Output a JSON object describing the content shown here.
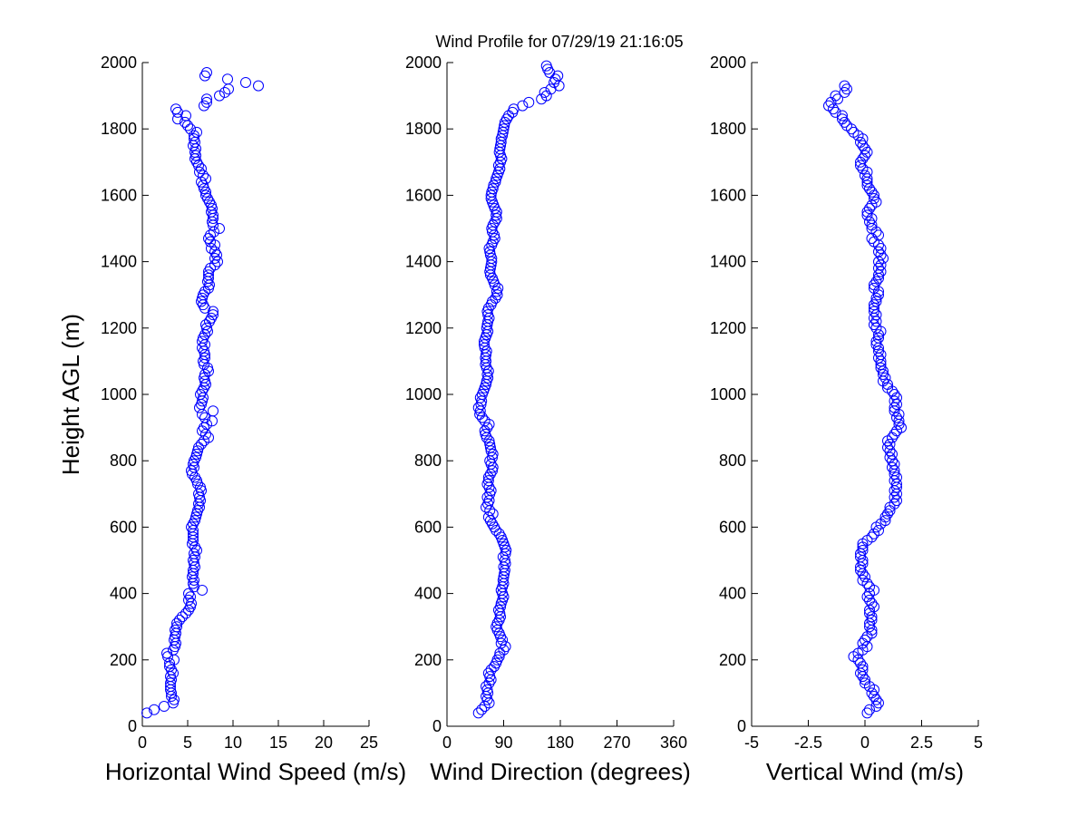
{
  "chart_data": {
    "title": "Wind Profile for  07/29/19 21:16:05",
    "ylabel": "Height AGL (m)",
    "ylim": [
      0,
      2000
    ],
    "yticks": [
      0,
      200,
      400,
      600,
      800,
      1000,
      1200,
      1400,
      1600,
      1800,
      2000
    ],
    "colors": {
      "marker": "#0000ff",
      "axes": "#000000",
      "background": "#ffffff"
    },
    "height": [
      40,
      50,
      60,
      70,
      80,
      90,
      100,
      110,
      120,
      130,
      140,
      150,
      160,
      170,
      180,
      190,
      200,
      210,
      220,
      230,
      240,
      250,
      260,
      270,
      280,
      290,
      300,
      310,
      320,
      330,
      340,
      350,
      360,
      370,
      380,
      390,
      400,
      410,
      420,
      430,
      440,
      450,
      460,
      470,
      480,
      490,
      500,
      510,
      520,
      530,
      540,
      550,
      560,
      570,
      580,
      590,
      600,
      610,
      620,
      630,
      640,
      650,
      660,
      670,
      680,
      690,
      700,
      710,
      720,
      730,
      740,
      750,
      760,
      770,
      780,
      790,
      800,
      810,
      820,
      830,
      840,
      850,
      860,
      870,
      880,
      890,
      900,
      910,
      920,
      930,
      940,
      950,
      960,
      970,
      980,
      990,
      1000,
      1010,
      1020,
      1030,
      1040,
      1050,
      1060,
      1070,
      1080,
      1090,
      1100,
      1110,
      1120,
      1130,
      1140,
      1150,
      1160,
      1170,
      1180,
      1190,
      1200,
      1210,
      1220,
      1230,
      1240,
      1250,
      1260,
      1270,
      1280,
      1290,
      1300,
      1310,
      1320,
      1330,
      1340,
      1350,
      1360,
      1370,
      1380,
      1390,
      1400,
      1410,
      1420,
      1430,
      1440,
      1450,
      1460,
      1470,
      1480,
      1490,
      1500,
      1510,
      1520,
      1530,
      1540,
      1550,
      1560,
      1570,
      1580,
      1590,
      1600,
      1610,
      1620,
      1630,
      1640,
      1650,
      1660,
      1670,
      1680,
      1690,
      1700,
      1710,
      1720,
      1730,
      1740,
      1750,
      1760,
      1770,
      1780,
      1790,
      1800,
      1810,
      1820,
      1830,
      1840,
      1850,
      1860,
      1870,
      1880,
      1890,
      1900,
      1910,
      1920,
      1930,
      1940,
      1950,
      1960,
      1970,
      1980,
      1990
    ],
    "panels": [
      {
        "type": "scatter",
        "xlabel": "Horizontal Wind Speed (m/s)",
        "xlim": [
          0,
          25
        ],
        "xticks": [
          0,
          5,
          10,
          15,
          20,
          25
        ],
        "xtick_labels": [
          "0",
          "5",
          "10",
          "15",
          "20",
          "25"
        ],
        "values": [
          0.5,
          1.3,
          2.4,
          3.4,
          3.5,
          3.2,
          3.2,
          3.1,
          3.1,
          3.1,
          3.2,
          3.1,
          3.4,
          3.2,
          3.0,
          3.0,
          3.5,
          2.8,
          2.7,
          3.4,
          3.6,
          3.7,
          3.5,
          3.6,
          3.7,
          3.6,
          3.8,
          3.8,
          4.1,
          4.4,
          4.8,
          5.1,
          5.3,
          5.4,
          5.1,
          5.3,
          5.1,
          6.6,
          5.7,
          5.6,
          5.7,
          5.5,
          5.6,
          5.6,
          5.8,
          5.7,
          5.6,
          5.8,
          5.7,
          6.0,
          5.8,
          5.5,
          5.6,
          5.6,
          5.6,
          5.6,
          5.4,
          5.6,
          5.8,
          5.9,
          6.0,
          6.1,
          6.3,
          6.2,
          6.4,
          6.3,
          6.2,
          6.5,
          6.4,
          6.1,
          6.0,
          5.8,
          5.5,
          5.4,
          5.7,
          5.6,
          5.7,
          5.9,
          6.0,
          6.1,
          6.2,
          6.5,
          6.8,
          7.3,
          7.0,
          6.6,
          6.8,
          7.1,
          7.7,
          6.9,
          6.6,
          7.8,
          6.3,
          6.5,
          6.6,
          6.7,
          6.4,
          6.6,
          6.8,
          7.0,
          6.9,
          6.8,
          6.9,
          7.3,
          7.2,
          6.8,
          6.7,
          6.9,
          6.9,
          6.8,
          6.6,
          6.9,
          6.6,
          6.7,
          6.9,
          7.2,
          7.1,
          7.0,
          7.4,
          7.6,
          7.8,
          7.8,
          6.9,
          6.7,
          6.5,
          6.6,
          6.7,
          6.9,
          7.3,
          7.4,
          7.2,
          7.3,
          7.3,
          7.3,
          7.5,
          8.0,
          8.3,
          8.0,
          8.2,
          8.0,
          7.6,
          8.0,
          7.5,
          7.3,
          7.5,
          7.9,
          8.5,
          7.8,
          7.7,
          7.8,
          7.8,
          7.6,
          7.7,
          7.6,
          7.4,
          7.2,
          7.0,
          7.0,
          6.8,
          6.7,
          6.5,
          7.0,
          6.7,
          6.3,
          6.5,
          6.2,
          6.0,
          5.8,
          5.9,
          5.8,
          5.9,
          5.6,
          5.8,
          5.7,
          5.7,
          6.0,
          5.3,
          5.0,
          4.7,
          3.9,
          4.8,
          3.9,
          3.7,
          6.8,
          7.1,
          7.1,
          8.5,
          9.1,
          9.5,
          12.8,
          11.4,
          9.4,
          6.9,
          7.1
        ]
      },
      {
        "type": "scatter",
        "xlabel": "Wind Direction (degrees)",
        "xlim": [
          0,
          360
        ],
        "xticks": [
          0,
          90,
          180,
          270,
          360
        ],
        "xtick_labels": [
          "0",
          "90",
          "180",
          "270",
          "360"
        ],
        "values": [
          50,
          55,
          60,
          67,
          64,
          62,
          65,
          64,
          62,
          67,
          70,
          68,
          66,
          70,
          75,
          78,
          80,
          83,
          84,
          90,
          93,
          86,
          88,
          85,
          83,
          80,
          78,
          80,
          83,
          85,
          84,
          82,
          85,
          86,
          88,
          90,
          88,
          86,
          88,
          90,
          89,
          90,
          91,
          92,
          90,
          93,
          92,
          89,
          93,
          94,
          92,
          90,
          88,
          86,
          83,
          78,
          75,
          72,
          69,
          66,
          73,
          68,
          62,
          65,
          67,
          64,
          68,
          70,
          67,
          64,
          66,
          66,
          69,
          72,
          73,
          70,
          68,
          72,
          73,
          70,
          69,
          68,
          67,
          63,
          61,
          60,
          64,
          67,
          60,
          56,
          52,
          53,
          50,
          54,
          55,
          53,
          56,
          58,
          60,
          62,
          63,
          65,
          64,
          66,
          63,
          61,
          62,
          61,
          62,
          63,
          60,
          59,
          59,
          61,
          63,
          65,
          63,
          64,
          65,
          67,
          65,
          64,
          66,
          70,
          72,
          77,
          80,
          79,
          81,
          76,
          74,
          72,
          69,
          68,
          69,
          70,
          71,
          71,
          69,
          68,
          67,
          71,
          73,
          76,
          75,
          72,
          71,
          73,
          76,
          79,
          78,
          79,
          76,
          74,
          72,
          70,
          70,
          71,
          73,
          74,
          77,
          78,
          80,
          82,
          84,
          82,
          85,
          87,
          85,
          83,
          84,
          85,
          86,
          86,
          88,
          89,
          90,
          91,
          92,
          95,
          98,
          104,
          106,
          120,
          130,
          150,
          158,
          155,
          165,
          178,
          170,
          172,
          176,
          163,
          160,
          158
        ]
      },
      {
        "type": "scatter",
        "xlabel": "Vertical Wind (m/s)",
        "xlim": [
          -5,
          5
        ],
        "xticks": [
          -5,
          -2.5,
          0,
          2.5,
          5
        ],
        "xtick_labels": [
          "-5",
          "-2.5",
          "0",
          "2.5",
          "5"
        ],
        "values": [
          0.1,
          0.2,
          0.5,
          0.6,
          0.5,
          0.4,
          0.3,
          0.4,
          0.2,
          0.0,
          0.0,
          -0.1,
          -0.2,
          -0.1,
          -0.1,
          -0.2,
          -0.3,
          -0.5,
          -0.3,
          -0.1,
          0.1,
          -0.1,
          0.0,
          0.1,
          0.3,
          0.3,
          0.2,
          0.2,
          0.3,
          0.3,
          0.2,
          0.2,
          0.4,
          0.3,
          0.2,
          0.1,
          0.2,
          0.4,
          0.2,
          0.1,
          -0.1,
          0.0,
          -0.1,
          -0.2,
          -0.2,
          -0.1,
          -0.1,
          -0.2,
          -0.2,
          -0.1,
          -0.1,
          -0.1,
          0.1,
          0.3,
          0.4,
          0.6,
          0.5,
          0.7,
          0.9,
          0.9,
          1.0,
          1.1,
          1.1,
          1.3,
          1.4,
          1.3,
          1.4,
          1.3,
          1.4,
          1.4,
          1.3,
          1.4,
          1.3,
          1.3,
          1.2,
          1.3,
          1.2,
          1.1,
          1.2,
          1.1,
          1.0,
          1.1,
          1.0,
          1.2,
          1.3,
          1.4,
          1.6,
          1.5,
          1.5,
          1.4,
          1.5,
          1.3,
          1.3,
          1.4,
          1.3,
          1.4,
          1.3,
          1.2,
          1.0,
          1.0,
          0.8,
          0.9,
          0.8,
          0.8,
          0.7,
          0.7,
          0.7,
          0.6,
          0.7,
          0.6,
          0.6,
          0.5,
          0.5,
          0.6,
          0.6,
          0.7,
          0.5,
          0.4,
          0.5,
          0.4,
          0.5,
          0.4,
          0.4,
          0.4,
          0.5,
          0.5,
          0.6,
          0.6,
          0.4,
          0.4,
          0.5,
          0.6,
          0.6,
          0.7,
          0.6,
          0.7,
          0.6,
          0.8,
          0.7,
          0.6,
          0.7,
          0.6,
          0.4,
          0.3,
          0.6,
          0.5,
          0.3,
          0.3,
          0.2,
          0.3,
          0.1,
          0.1,
          0.2,
          0.3,
          0.5,
          0.4,
          0.4,
          0.3,
          0.2,
          0.1,
          0.1,
          0.1,
          0.0,
          0.1,
          -0.1,
          -0.2,
          -0.2,
          -0.1,
          0.0,
          0.1,
          0.0,
          -0.1,
          -0.2,
          -0.1,
          -0.3,
          -0.5,
          -0.6,
          -0.8,
          -0.9,
          -1.0,
          -1.0,
          -1.3,
          -1.4,
          -1.6,
          -1.5,
          -1.2,
          -1.3,
          -0.9,
          -0.8,
          -0.9
        ]
      }
    ]
  }
}
